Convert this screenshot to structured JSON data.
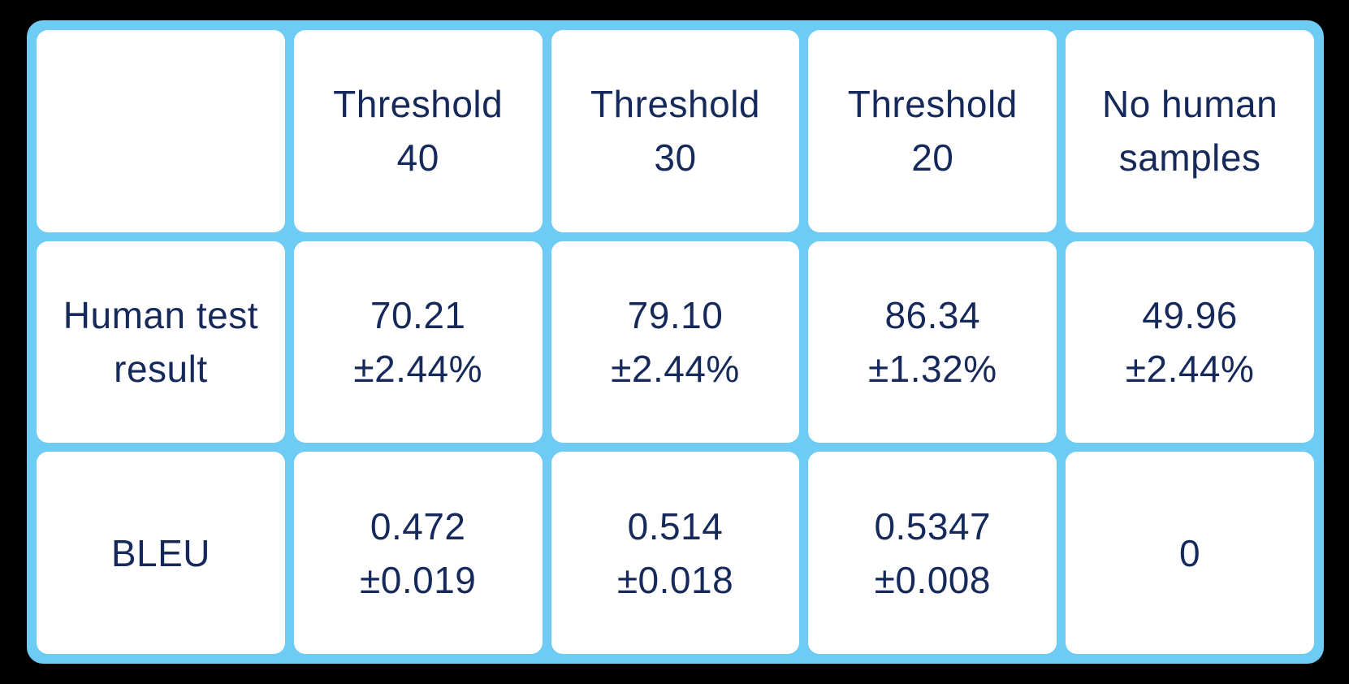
{
  "table": {
    "header_cells": [
      {
        "line1": "",
        "line2": ""
      },
      {
        "line1": "Threshold",
        "line2": "40"
      },
      {
        "line1": "Threshold",
        "line2": "30"
      },
      {
        "line1": "Threshold",
        "line2": "20"
      },
      {
        "line1": "No human",
        "line2": "samples"
      }
    ],
    "data_rows": [
      {
        "cells": [
          {
            "line1": "Human test",
            "line2": "result"
          },
          {
            "line1": "70.21",
            "line2": "±2.44%"
          },
          {
            "line1": "79.10",
            "line2": "±2.44%"
          },
          {
            "line1": "86.34",
            "line2": "±1.32%"
          },
          {
            "line1": "49.96",
            "line2": "±2.44%"
          }
        ]
      },
      {
        "cells": [
          {
            "line1": "BLEU",
            "line2": ""
          },
          {
            "line1": "0.472",
            "line2": "±0.019"
          },
          {
            "line1": "0.514",
            "line2": "±0.018"
          },
          {
            "line1": "0.5347",
            "line2": "±0.008"
          },
          {
            "line1": "0",
            "line2": ""
          }
        ]
      }
    ]
  },
  "chart_data": {
    "type": "table",
    "columns": [
      "",
      "Threshold 40",
      "Threshold 30",
      "Threshold 20",
      "No human samples"
    ],
    "rows": [
      {
        "label": "Human test result",
        "values": [
          "70.21 ±2.44%",
          "79.10 ±2.44%",
          "86.34 ±1.32%",
          "49.96 ±2.44%"
        ]
      },
      {
        "label": "BLEU",
        "values": [
          "0.472 ±0.019",
          "0.514 ±0.018",
          "0.5347 ±0.008",
          "0"
        ]
      }
    ]
  },
  "colors": {
    "grid_blue": "#6DCBF4",
    "cell_background": "#FFFFFF",
    "text_navy": "#16295B",
    "page_background": "#000000"
  }
}
